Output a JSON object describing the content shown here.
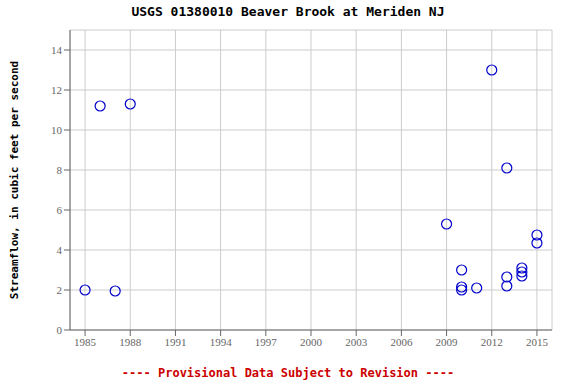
{
  "chart_data": {
    "type": "scatter",
    "title": "USGS 01380010 Beaver Brook at Meriden NJ",
    "ylabel": "Streamflow, in cubic feet per second",
    "annotation": "---- Provisional Data Subject to Revision ----",
    "x": [
      1985,
      1986,
      1987,
      1988,
      2009,
      2010,
      2010,
      2010,
      2011,
      2012,
      2013,
      2013,
      2013,
      2014,
      2014,
      2014,
      2015,
      2015
    ],
    "values": [
      2.0,
      11.2,
      1.95,
      11.3,
      5.3,
      3.0,
      2.15,
      2.0,
      2.1,
      13.0,
      8.1,
      2.2,
      2.65,
      2.7,
      3.1,
      2.9,
      4.75,
      4.35
    ],
    "color": "#0000cc",
    "marker": "circle",
    "xlim": [
      1984,
      2016
    ],
    "ylim": [
      0,
      15
    ],
    "xticks": [
      1985,
      1988,
      1991,
      1994,
      1997,
      2000,
      2003,
      2006,
      2009,
      2012,
      2015
    ],
    "yticks": [
      0,
      2,
      4,
      6,
      8,
      10,
      12,
      14
    ],
    "grid": true
  }
}
